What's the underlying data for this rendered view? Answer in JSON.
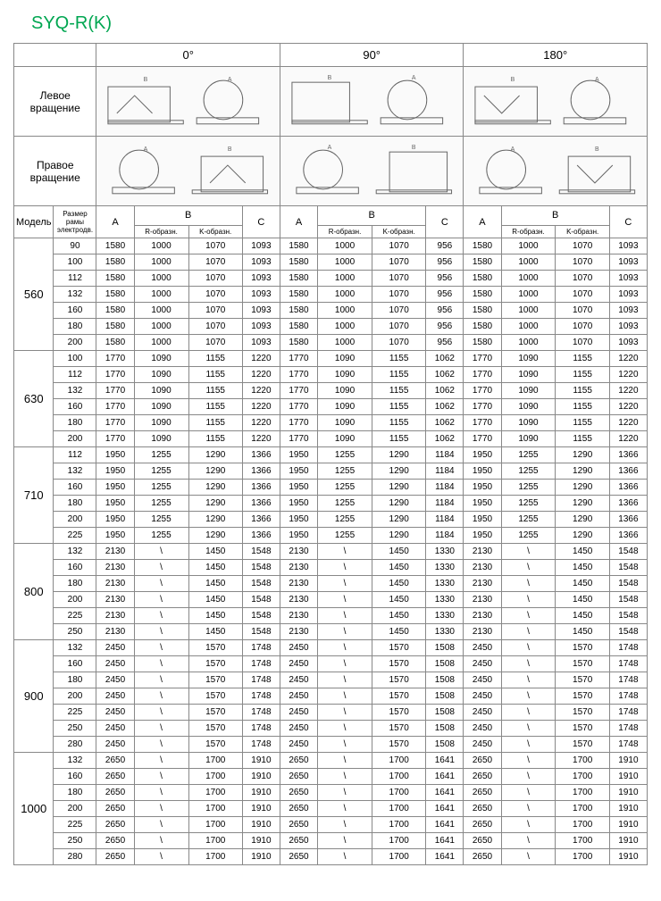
{
  "title": "SYQ-R(K)",
  "angles": [
    "0°",
    "90°",
    "180°"
  ],
  "rotation_left": "Левое вращение",
  "rotation_right": "Правое вращение",
  "headers": {
    "model": "Модель",
    "frame": "Размер рамы электродв.",
    "a": "A",
    "b": "B",
    "c": "C",
    "r_shape": "R-образн.",
    "k_shape": "K-образн."
  },
  "colors": {
    "title": "#00a651",
    "border": "#888888",
    "bg": "#ffffff"
  },
  "models": [
    {
      "model": "560",
      "rows": [
        {
          "frame": "90",
          "g0": [
            "1580",
            "1000",
            "1070",
            "1093"
          ],
          "g90": [
            "1580",
            "1000",
            "1070",
            "956"
          ],
          "g180": [
            "1580",
            "1000",
            "1070",
            "1093"
          ]
        },
        {
          "frame": "100",
          "g0": [
            "1580",
            "1000",
            "1070",
            "1093"
          ],
          "g90": [
            "1580",
            "1000",
            "1070",
            "956"
          ],
          "g180": [
            "1580",
            "1000",
            "1070",
            "1093"
          ]
        },
        {
          "frame": "112",
          "g0": [
            "1580",
            "1000",
            "1070",
            "1093"
          ],
          "g90": [
            "1580",
            "1000",
            "1070",
            "956"
          ],
          "g180": [
            "1580",
            "1000",
            "1070",
            "1093"
          ]
        },
        {
          "frame": "132",
          "g0": [
            "1580",
            "1000",
            "1070",
            "1093"
          ],
          "g90": [
            "1580",
            "1000",
            "1070",
            "956"
          ],
          "g180": [
            "1580",
            "1000",
            "1070",
            "1093"
          ]
        },
        {
          "frame": "160",
          "g0": [
            "1580",
            "1000",
            "1070",
            "1093"
          ],
          "g90": [
            "1580",
            "1000",
            "1070",
            "956"
          ],
          "g180": [
            "1580",
            "1000",
            "1070",
            "1093"
          ]
        },
        {
          "frame": "180",
          "g0": [
            "1580",
            "1000",
            "1070",
            "1093"
          ],
          "g90": [
            "1580",
            "1000",
            "1070",
            "956"
          ],
          "g180": [
            "1580",
            "1000",
            "1070",
            "1093"
          ]
        },
        {
          "frame": "200",
          "g0": [
            "1580",
            "1000",
            "1070",
            "1093"
          ],
          "g90": [
            "1580",
            "1000",
            "1070",
            "956"
          ],
          "g180": [
            "1580",
            "1000",
            "1070",
            "1093"
          ]
        }
      ]
    },
    {
      "model": "630",
      "rows": [
        {
          "frame": "100",
          "g0": [
            "1770",
            "1090",
            "1155",
            "1220"
          ],
          "g90": [
            "1770",
            "1090",
            "1155",
            "1062"
          ],
          "g180": [
            "1770",
            "1090",
            "1155",
            "1220"
          ]
        },
        {
          "frame": "112",
          "g0": [
            "1770",
            "1090",
            "1155",
            "1220"
          ],
          "g90": [
            "1770",
            "1090",
            "1155",
            "1062"
          ],
          "g180": [
            "1770",
            "1090",
            "1155",
            "1220"
          ]
        },
        {
          "frame": "132",
          "g0": [
            "1770",
            "1090",
            "1155",
            "1220"
          ],
          "g90": [
            "1770",
            "1090",
            "1155",
            "1062"
          ],
          "g180": [
            "1770",
            "1090",
            "1155",
            "1220"
          ]
        },
        {
          "frame": "160",
          "g0": [
            "1770",
            "1090",
            "1155",
            "1220"
          ],
          "g90": [
            "1770",
            "1090",
            "1155",
            "1062"
          ],
          "g180": [
            "1770",
            "1090",
            "1155",
            "1220"
          ]
        },
        {
          "frame": "180",
          "g0": [
            "1770",
            "1090",
            "1155",
            "1220"
          ],
          "g90": [
            "1770",
            "1090",
            "1155",
            "1062"
          ],
          "g180": [
            "1770",
            "1090",
            "1155",
            "1220"
          ]
        },
        {
          "frame": "200",
          "g0": [
            "1770",
            "1090",
            "1155",
            "1220"
          ],
          "g90": [
            "1770",
            "1090",
            "1155",
            "1062"
          ],
          "g180": [
            "1770",
            "1090",
            "1155",
            "1220"
          ]
        }
      ]
    },
    {
      "model": "710",
      "rows": [
        {
          "frame": "112",
          "g0": [
            "1950",
            "1255",
            "1290",
            "1366"
          ],
          "g90": [
            "1950",
            "1255",
            "1290",
            "1184"
          ],
          "g180": [
            "1950",
            "1255",
            "1290",
            "1366"
          ]
        },
        {
          "frame": "132",
          "g0": [
            "1950",
            "1255",
            "1290",
            "1366"
          ],
          "g90": [
            "1950",
            "1255",
            "1290",
            "1184"
          ],
          "g180": [
            "1950",
            "1255",
            "1290",
            "1366"
          ]
        },
        {
          "frame": "160",
          "g0": [
            "1950",
            "1255",
            "1290",
            "1366"
          ],
          "g90": [
            "1950",
            "1255",
            "1290",
            "1184"
          ],
          "g180": [
            "1950",
            "1255",
            "1290",
            "1366"
          ]
        },
        {
          "frame": "180",
          "g0": [
            "1950",
            "1255",
            "1290",
            "1366"
          ],
          "g90": [
            "1950",
            "1255",
            "1290",
            "1184"
          ],
          "g180": [
            "1950",
            "1255",
            "1290",
            "1366"
          ]
        },
        {
          "frame": "200",
          "g0": [
            "1950",
            "1255",
            "1290",
            "1366"
          ],
          "g90": [
            "1950",
            "1255",
            "1290",
            "1184"
          ],
          "g180": [
            "1950",
            "1255",
            "1290",
            "1366"
          ]
        },
        {
          "frame": "225",
          "g0": [
            "1950",
            "1255",
            "1290",
            "1366"
          ],
          "g90": [
            "1950",
            "1255",
            "1290",
            "1184"
          ],
          "g180": [
            "1950",
            "1255",
            "1290",
            "1366"
          ]
        }
      ]
    },
    {
      "model": "800",
      "rows": [
        {
          "frame": "132",
          "g0": [
            "2130",
            "\\",
            "1450",
            "1548"
          ],
          "g90": [
            "2130",
            "\\",
            "1450",
            "1330"
          ],
          "g180": [
            "2130",
            "\\",
            "1450",
            "1548"
          ]
        },
        {
          "frame": "160",
          "g0": [
            "2130",
            "\\",
            "1450",
            "1548"
          ],
          "g90": [
            "2130",
            "\\",
            "1450",
            "1330"
          ],
          "g180": [
            "2130",
            "\\",
            "1450",
            "1548"
          ]
        },
        {
          "frame": "180",
          "g0": [
            "2130",
            "\\",
            "1450",
            "1548"
          ],
          "g90": [
            "2130",
            "\\",
            "1450",
            "1330"
          ],
          "g180": [
            "2130",
            "\\",
            "1450",
            "1548"
          ]
        },
        {
          "frame": "200",
          "g0": [
            "2130",
            "\\",
            "1450",
            "1548"
          ],
          "g90": [
            "2130",
            "\\",
            "1450",
            "1330"
          ],
          "g180": [
            "2130",
            "\\",
            "1450",
            "1548"
          ]
        },
        {
          "frame": "225",
          "g0": [
            "2130",
            "\\",
            "1450",
            "1548"
          ],
          "g90": [
            "2130",
            "\\",
            "1450",
            "1330"
          ],
          "g180": [
            "2130",
            "\\",
            "1450",
            "1548"
          ]
        },
        {
          "frame": "250",
          "g0": [
            "2130",
            "\\",
            "1450",
            "1548"
          ],
          "g90": [
            "2130",
            "\\",
            "1450",
            "1330"
          ],
          "g180": [
            "2130",
            "\\",
            "1450",
            "1548"
          ]
        }
      ]
    },
    {
      "model": "900",
      "rows": [
        {
          "frame": "132",
          "g0": [
            "2450",
            "\\",
            "1570",
            "1748"
          ],
          "g90": [
            "2450",
            "\\",
            "1570",
            "1508"
          ],
          "g180": [
            "2450",
            "\\",
            "1570",
            "1748"
          ]
        },
        {
          "frame": "160",
          "g0": [
            "2450",
            "\\",
            "1570",
            "1748"
          ],
          "g90": [
            "2450",
            "\\",
            "1570",
            "1508"
          ],
          "g180": [
            "2450",
            "\\",
            "1570",
            "1748"
          ]
        },
        {
          "frame": "180",
          "g0": [
            "2450",
            "\\",
            "1570",
            "1748"
          ],
          "g90": [
            "2450",
            "\\",
            "1570",
            "1508"
          ],
          "g180": [
            "2450",
            "\\",
            "1570",
            "1748"
          ]
        },
        {
          "frame": "200",
          "g0": [
            "2450",
            "\\",
            "1570",
            "1748"
          ],
          "g90": [
            "2450",
            "\\",
            "1570",
            "1508"
          ],
          "g180": [
            "2450",
            "\\",
            "1570",
            "1748"
          ]
        },
        {
          "frame": "225",
          "g0": [
            "2450",
            "\\",
            "1570",
            "1748"
          ],
          "g90": [
            "2450",
            "\\",
            "1570",
            "1508"
          ],
          "g180": [
            "2450",
            "\\",
            "1570",
            "1748"
          ]
        },
        {
          "frame": "250",
          "g0": [
            "2450",
            "\\",
            "1570",
            "1748"
          ],
          "g90": [
            "2450",
            "\\",
            "1570",
            "1508"
          ],
          "g180": [
            "2450",
            "\\",
            "1570",
            "1748"
          ]
        },
        {
          "frame": "280",
          "g0": [
            "2450",
            "\\",
            "1570",
            "1748"
          ],
          "g90": [
            "2450",
            "\\",
            "1570",
            "1508"
          ],
          "g180": [
            "2450",
            "\\",
            "1570",
            "1748"
          ]
        }
      ]
    },
    {
      "model": "1000",
      "rows": [
        {
          "frame": "132",
          "g0": [
            "2650",
            "\\",
            "1700",
            "1910"
          ],
          "g90": [
            "2650",
            "\\",
            "1700",
            "1641"
          ],
          "g180": [
            "2650",
            "\\",
            "1700",
            "1910"
          ]
        },
        {
          "frame": "160",
          "g0": [
            "2650",
            "\\",
            "1700",
            "1910"
          ],
          "g90": [
            "2650",
            "\\",
            "1700",
            "1641"
          ],
          "g180": [
            "2650",
            "\\",
            "1700",
            "1910"
          ]
        },
        {
          "frame": "180",
          "g0": [
            "2650",
            "\\",
            "1700",
            "1910"
          ],
          "g90": [
            "2650",
            "\\",
            "1700",
            "1641"
          ],
          "g180": [
            "2650",
            "\\",
            "1700",
            "1910"
          ]
        },
        {
          "frame": "200",
          "g0": [
            "2650",
            "\\",
            "1700",
            "1910"
          ],
          "g90": [
            "2650",
            "\\",
            "1700",
            "1641"
          ],
          "g180": [
            "2650",
            "\\",
            "1700",
            "1910"
          ]
        },
        {
          "frame": "225",
          "g0": [
            "2650",
            "\\",
            "1700",
            "1910"
          ],
          "g90": [
            "2650",
            "\\",
            "1700",
            "1641"
          ],
          "g180": [
            "2650",
            "\\",
            "1700",
            "1910"
          ]
        },
        {
          "frame": "250",
          "g0": [
            "2650",
            "\\",
            "1700",
            "1910"
          ],
          "g90": [
            "2650",
            "\\",
            "1700",
            "1641"
          ],
          "g180": [
            "2650",
            "\\",
            "1700",
            "1910"
          ]
        },
        {
          "frame": "280",
          "g0": [
            "2650",
            "\\",
            "1700",
            "1910"
          ],
          "g90": [
            "2650",
            "\\",
            "1700",
            "1641"
          ],
          "g180": [
            "2650",
            "\\",
            "1700",
            "1910"
          ]
        }
      ]
    }
  ]
}
